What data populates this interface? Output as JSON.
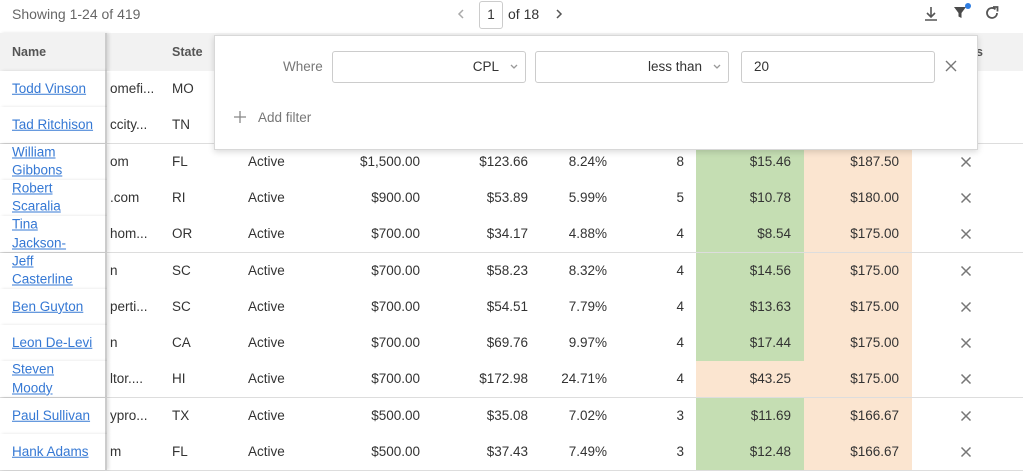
{
  "toolbar": {
    "showing": "Showing 1-24 of 419",
    "page": "1",
    "page_of": "of 18"
  },
  "filter": {
    "where": "Where",
    "field": "CPL",
    "operator": "less than",
    "value": "20",
    "add": "Add filter"
  },
  "table": {
    "headers": {
      "name": "Name",
      "state": "State",
      "last": "s"
    },
    "rows": [
      {
        "cells": [
          "Todd Vinson",
          "omefi...",
          "MO"
        ]
      },
      {
        "cells": [
          "Tad Ritchison",
          "ccity...",
          "TN"
        ]
      },
      {
        "cells": [
          "William Gibbons",
          "om",
          "FL",
          "Active",
          "$1,500.00",
          "$123.66",
          "8.24%",
          "8",
          "$15.46",
          "$187.50"
        ],
        "cpl_color": "#c5deb3"
      },
      {
        "cells": [
          "Robert Scaralia",
          ".com",
          "RI",
          "Active",
          "$900.00",
          "$53.89",
          "5.99%",
          "5",
          "$10.78",
          "$180.00"
        ],
        "cpl_color": "#c5deb3"
      },
      {
        "cells": [
          "Tina Jackson-",
          "hom...",
          "OR",
          "Active",
          "$700.00",
          "$34.17",
          "4.88%",
          "4",
          "$8.54",
          "$175.00"
        ],
        "cpl_color": "#c5deb3"
      },
      {
        "cells": [
          "Jeff Casterline",
          "n",
          "SC",
          "Active",
          "$700.00",
          "$58.23",
          "8.32%",
          "4",
          "$14.56",
          "$175.00"
        ],
        "cpl_color": "#c5deb3"
      },
      {
        "cells": [
          "Ben Guyton",
          "perti...",
          "SC",
          "Active",
          "$700.00",
          "$54.51",
          "7.79%",
          "4",
          "$13.63",
          "$175.00"
        ],
        "cpl_color": "#c5deb3"
      },
      {
        "cells": [
          "Leon De-Levi",
          "n",
          "CA",
          "Active",
          "$700.00",
          "$69.76",
          "9.97%",
          "4",
          "$17.44",
          "$175.00"
        ],
        "cpl_color": "#c5deb3"
      },
      {
        "cells": [
          "Steven Moody",
          "ltor....",
          "HI",
          "Active",
          "$700.00",
          "$172.98",
          "24.71%",
          "4",
          "$43.25",
          "$175.00"
        ],
        "cpl_color": "#fbe5d0"
      },
      {
        "cells": [
          "Paul Sullivan",
          "ypro...",
          "TX",
          "Active",
          "$500.00",
          "$35.08",
          "7.02%",
          "3",
          "$11.69",
          "$166.67"
        ],
        "cpl_color": "#c5deb3"
      },
      {
        "cells": [
          "Hank Adams",
          "m",
          "FL",
          "Active",
          "$500.00",
          "$37.43",
          "7.49%",
          "3",
          "$12.48",
          "$166.67"
        ],
        "cpl_color": "#c5deb3"
      }
    ]
  }
}
